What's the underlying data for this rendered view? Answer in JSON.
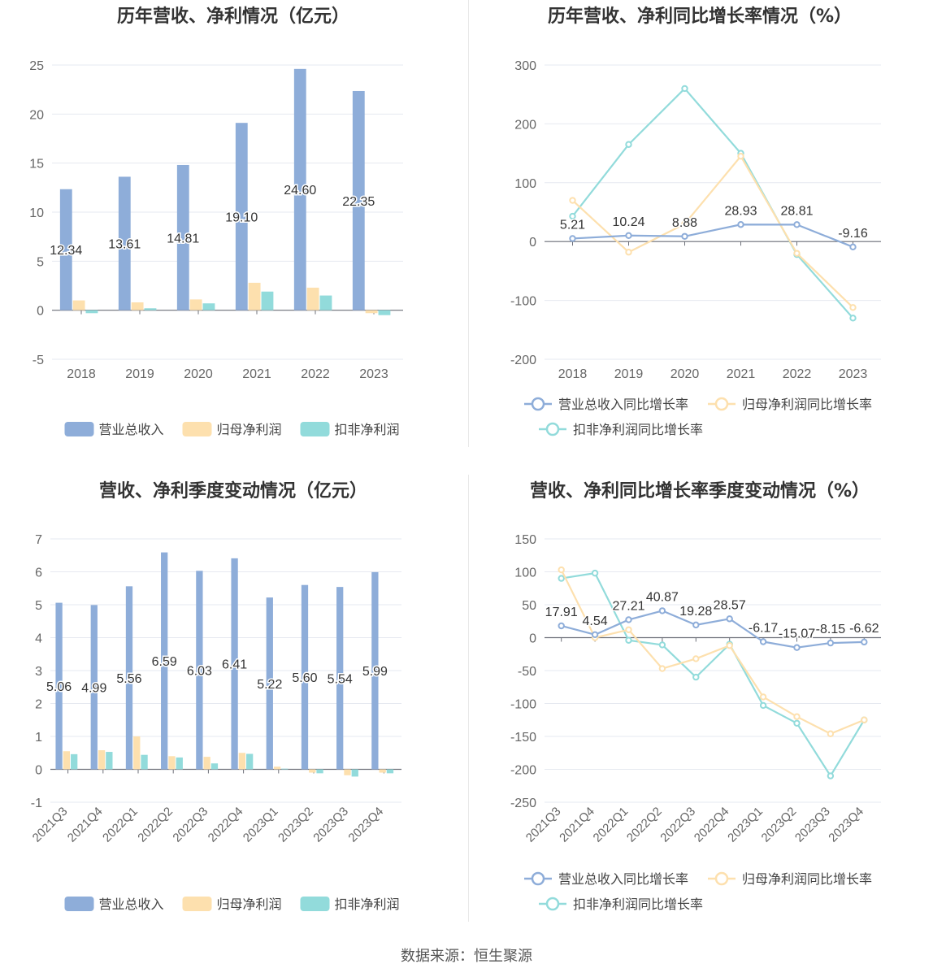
{
  "source": "数据来源：恒生聚源",
  "colors": {
    "revenue": "#8eadd9",
    "net_profit": "#fde0ae",
    "deducted_profit": "#92dbdb"
  },
  "chart_data": [
    {
      "id": "annual-amounts",
      "type": "bar",
      "title": "历年营收、净利情况（亿元）",
      "categories": [
        "2018",
        "2019",
        "2020",
        "2021",
        "2022",
        "2023"
      ],
      "ylim": [
        -5,
        25
      ],
      "yticks": [
        25,
        20,
        15,
        10,
        5,
        0,
        -5
      ],
      "grid": true,
      "legend_position": "bottom",
      "series": [
        {
          "name": "营业总收入",
          "color": "#8eadd9",
          "values": [
            12.34,
            13.61,
            14.81,
            19.1,
            24.6,
            22.35
          ],
          "labels": [
            "12.34",
            "13.61",
            "14.81",
            "19.10",
            "24.60",
            "22.35"
          ]
        },
        {
          "name": "归母净利润",
          "color": "#fde0ae",
          "values": [
            1.0,
            0.8,
            1.1,
            2.8,
            2.3,
            -0.3
          ]
        },
        {
          "name": "扣非净利润",
          "color": "#92dbdb",
          "values": [
            -0.3,
            0.2,
            0.7,
            1.9,
            1.5,
            -0.5
          ]
        }
      ]
    },
    {
      "id": "annual-growth",
      "type": "line",
      "title": "历年营收、净利同比增长率情况（%）",
      "categories": [
        "2018",
        "2019",
        "2020",
        "2021",
        "2022",
        "2023"
      ],
      "ylim": [
        -200,
        300
      ],
      "yticks": [
        300,
        200,
        100,
        0,
        -100,
        -200
      ],
      "grid": true,
      "legend_position": "bottom",
      "series": [
        {
          "name": "营业总收入同比增长率",
          "color": "#8eadd9",
          "values": [
            5.21,
            10.24,
            8.88,
            28.93,
            28.81,
            -9.16
          ],
          "labels": [
            "5.21",
            "10.24",
            "8.88",
            "28.93",
            "28.81",
            "-9.16"
          ]
        },
        {
          "name": "归母净利润同比增长率",
          "color": "#fde0ae",
          "values": [
            70,
            -18,
            30,
            145,
            -20,
            -112
          ]
        },
        {
          "name": "扣非净利润同比增长率",
          "color": "#92dbdb",
          "values": [
            43,
            165,
            260,
            150,
            -22,
            -130
          ]
        }
      ]
    },
    {
      "id": "quarterly-amounts",
      "type": "bar",
      "title": "营收、净利季度变动情况（亿元）",
      "categories": [
        "2021Q3",
        "2021Q4",
        "2022Q1",
        "2022Q2",
        "2022Q3",
        "2022Q4",
        "2023Q1",
        "2023Q2",
        "2023Q3",
        "2023Q4"
      ],
      "ylim": [
        -1,
        7
      ],
      "yticks": [
        7,
        6,
        5,
        4,
        3,
        2,
        1,
        0,
        -1
      ],
      "grid": true,
      "legend_position": "bottom",
      "series": [
        {
          "name": "营业总收入",
          "color": "#8eadd9",
          "values": [
            5.06,
            4.99,
            5.56,
            6.59,
            6.03,
            6.41,
            5.22,
            5.6,
            5.54,
            5.99
          ],
          "labels": [
            "5.06",
            "4.99",
            "5.56",
            "6.59",
            "6.03",
            "6.41",
            "5.22",
            "5.60",
            "5.54",
            "5.99"
          ]
        },
        {
          "name": "归母净利润",
          "color": "#fde0ae",
          "values": [
            0.55,
            0.58,
            1.0,
            0.4,
            0.38,
            0.5,
            0.08,
            -0.1,
            -0.18,
            -0.1
          ]
        },
        {
          "name": "扣非净利润",
          "color": "#92dbdb",
          "values": [
            0.46,
            0.53,
            0.44,
            0.36,
            0.18,
            0.47,
            0.02,
            -0.12,
            -0.22,
            -0.12
          ]
        }
      ]
    },
    {
      "id": "quarterly-growth",
      "type": "line",
      "title": "营收、净利同比增长率季度变动情况（%）",
      "categories": [
        "2021Q3",
        "2021Q4",
        "2022Q1",
        "2022Q2",
        "2022Q3",
        "2022Q4",
        "2023Q1",
        "2023Q2",
        "2023Q3",
        "2023Q4"
      ],
      "ylim": [
        -250,
        150
      ],
      "yticks": [
        150,
        100,
        50,
        0,
        -50,
        -100,
        -150,
        -200,
        -250
      ],
      "grid": true,
      "legend_position": "bottom",
      "series": [
        {
          "name": "营业总收入同比增长率",
          "color": "#8eadd9",
          "values": [
            17.91,
            4.54,
            27.21,
            40.87,
            19.28,
            28.57,
            -6.17,
            -15.07,
            -8.15,
            -6.62
          ],
          "labels": [
            "17.91",
            "4.54",
            "27.21",
            "40.87",
            "19.28",
            "28.57",
            "-6.17",
            "-15.07",
            "-8.15",
            "-6.62"
          ]
        },
        {
          "name": "归母净利润同比增长率",
          "color": "#fde0ae",
          "values": [
            103,
            0,
            12,
            -47,
            -32,
            -12,
            -90,
            -120,
            -146,
            -125
          ]
        },
        {
          "name": "扣非净利润同比增长率",
          "color": "#92dbdb",
          "values": [
            90,
            98,
            -4,
            -11,
            -60,
            -10,
            -103,
            -130,
            -210,
            -125
          ]
        }
      ]
    }
  ]
}
